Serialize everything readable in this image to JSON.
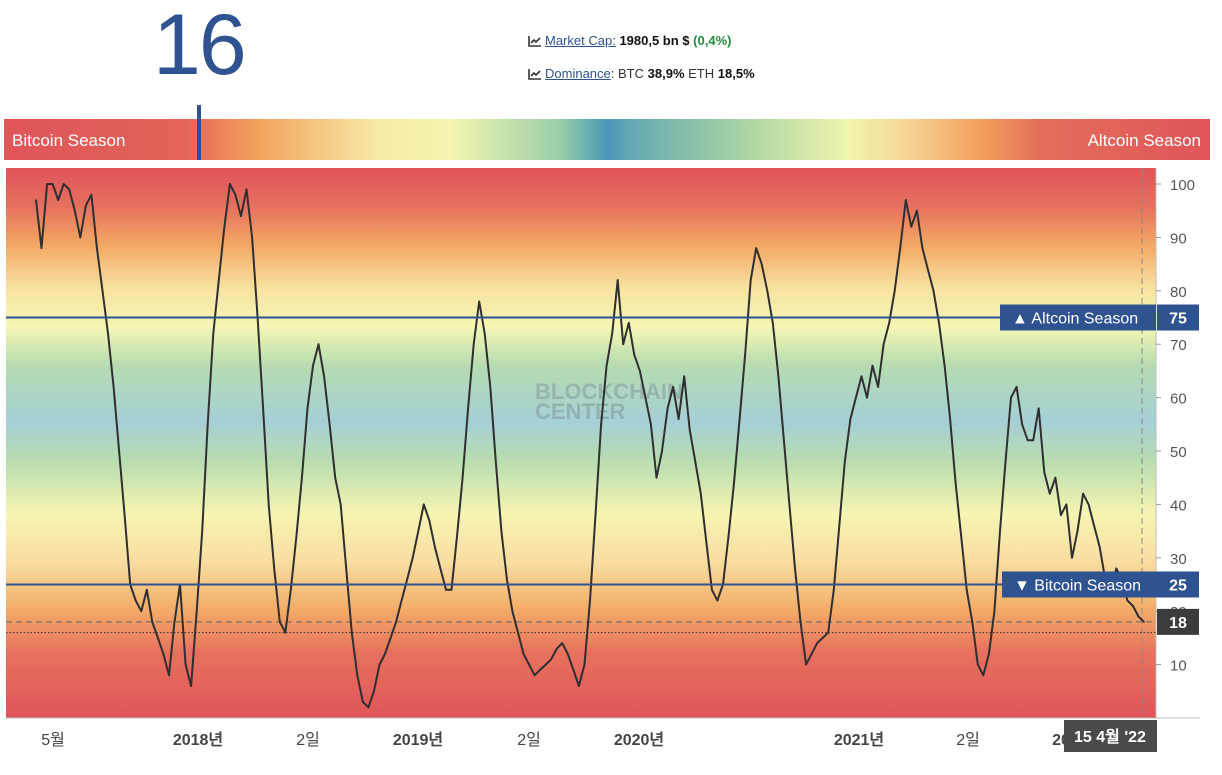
{
  "index_value": "16",
  "market": {
    "market_cap_label": "Market Cap:",
    "market_cap_value": "1980,5 bn $",
    "market_cap_change": "(0,4%)",
    "dominance_label": "Dominance",
    "dominance_btc_label": "BTC",
    "dominance_btc_value": "38,9%",
    "dominance_eth_label": "ETH",
    "dominance_eth_value": "18,5%"
  },
  "season_bar": {
    "left_label": "Bitcoin Season",
    "right_label": "Altcoin Season",
    "marker_value": 16
  },
  "watermark": [
    "BLOCKCHAIN",
    "CENTER"
  ],
  "chart_data": {
    "type": "line",
    "ylim": [
      0,
      103
    ],
    "yticks": [
      10,
      20,
      30,
      40,
      50,
      60,
      70,
      80,
      90,
      100
    ],
    "x_tick_labels": [
      "5월",
      "2018년",
      "2일",
      "2019년",
      "2일",
      "2020년",
      "2021년",
      "2일",
      "20"
    ],
    "thresholds": [
      {
        "name": "Altcoin Season",
        "value": 75,
        "symbol": "▲"
      },
      {
        "name": "Bitcoin Season",
        "value": 25,
        "symbol": "▼"
      }
    ],
    "current_value": 18,
    "current_date_label": "15 4월 '22",
    "reference_line_value": 16,
    "series": [
      {
        "values": [
          97,
          88,
          100,
          100,
          97,
          100,
          99,
          95,
          90,
          96,
          98,
          88,
          80,
          72,
          62,
          50,
          38,
          25,
          22,
          20,
          24,
          18,
          15,
          12,
          8,
          18,
          25,
          10,
          6,
          20,
          35,
          55,
          72,
          82,
          92,
          100,
          98,
          94,
          99,
          90,
          75,
          58,
          40,
          28,
          18,
          16,
          24,
          34,
          45,
          58,
          66,
          70,
          64,
          55,
          45,
          40,
          28,
          16,
          8,
          3,
          2,
          5,
          10,
          12,
          15,
          18,
          22,
          26,
          30,
          35,
          40,
          37,
          32,
          28,
          24,
          24,
          34,
          45,
          58,
          70,
          78,
          72,
          62,
          48,
          35,
          26,
          20,
          16,
          12,
          10,
          8,
          9,
          10,
          11,
          13,
          14,
          12,
          9,
          6,
          10,
          22,
          38,
          55,
          66,
          72,
          82,
          70,
          74,
          68,
          65,
          60,
          55,
          45,
          50,
          58,
          62,
          56,
          64,
          54,
          48,
          42,
          33,
          24,
          22,
          25,
          34,
          44,
          56,
          68,
          82,
          88,
          85,
          80,
          74,
          64,
          52,
          40,
          28,
          18,
          10,
          12,
          14,
          15,
          16,
          24,
          36,
          48,
          56,
          60,
          64,
          60,
          66,
          62,
          70,
          74,
          80,
          88,
          97,
          92,
          95,
          88,
          84,
          80,
          74,
          66,
          56,
          44,
          34,
          24,
          18,
          10,
          8,
          12,
          20,
          35,
          48,
          60,
          62,
          55,
          52,
          52,
          58,
          46,
          42,
          45,
          38,
          40,
          30,
          35,
          42,
          40,
          36,
          32,
          26,
          24,
          28,
          26,
          22,
          21,
          19,
          18
        ]
      }
    ]
  }
}
